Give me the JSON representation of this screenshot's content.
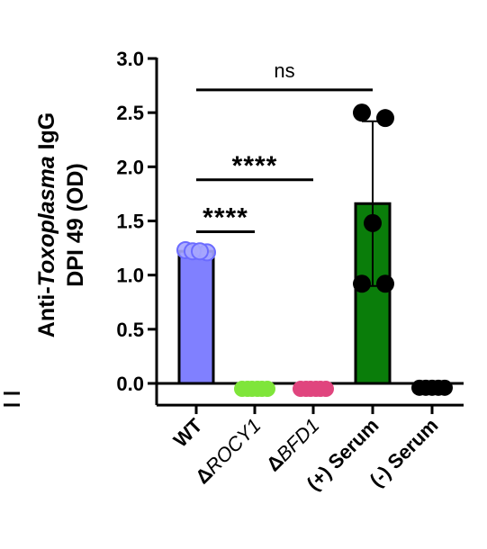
{
  "chart_data": {
    "type": "bar",
    "ylabel": {
      "line1_prefix": "Anti-",
      "line1_italic": "Toxoplasma",
      "line1_suffix": " IgG",
      "line2": "DPI 49 (OD)"
    },
    "ylim": [
      -0.2,
      3.0
    ],
    "yticks": [
      "0.0",
      "0.5",
      "1.0",
      "1.5",
      "2.0",
      "2.5",
      "3.0"
    ],
    "tick_values": [
      0.0,
      0.5,
      1.0,
      1.5,
      2.0,
      2.5,
      3.0
    ],
    "grid": false,
    "legend": "none",
    "categories": [
      {
        "prefix": "",
        "main": "WT",
        "italic": false
      },
      {
        "prefix": "Δ",
        "main": "ROCY1",
        "italic": true
      },
      {
        "prefix": "Δ",
        "main": "BFD1",
        "italic": true
      },
      {
        "prefix": "",
        "main": "(+) Serum",
        "italic": false
      },
      {
        "prefix": "",
        "main": "(-) Serum",
        "italic": false
      }
    ],
    "values": [
      1.22,
      -0.05,
      -0.05,
      1.66,
      -0.04
    ],
    "error": [
      0.03,
      0.01,
      0.01,
      0.76,
      0.02
    ],
    "colors": [
      "#8080ff",
      "#7fe53a",
      "#e0457e",
      "#0a7d0a",
      "#000000"
    ],
    "points": [
      [
        1.23,
        1.21,
        1.22,
        1.22
      ],
      [
        -0.05,
        -0.05,
        -0.05,
        -0.05,
        -0.05,
        -0.05
      ],
      [
        -0.05,
        -0.05,
        -0.05,
        -0.05,
        -0.05,
        -0.05
      ],
      [
        2.5,
        2.45,
        1.48,
        0.92,
        0.92
      ],
      [
        -0.04,
        -0.04,
        -0.04,
        -0.04,
        -0.04
      ]
    ],
    "significance": [
      {
        "from": 0,
        "to": 1,
        "y": 1.4,
        "label": "****"
      },
      {
        "from": 0,
        "to": 2,
        "y": 1.88,
        "label": "****"
      },
      {
        "from": 0,
        "to": 3,
        "y": 2.71,
        "label": "ns"
      }
    ]
  }
}
